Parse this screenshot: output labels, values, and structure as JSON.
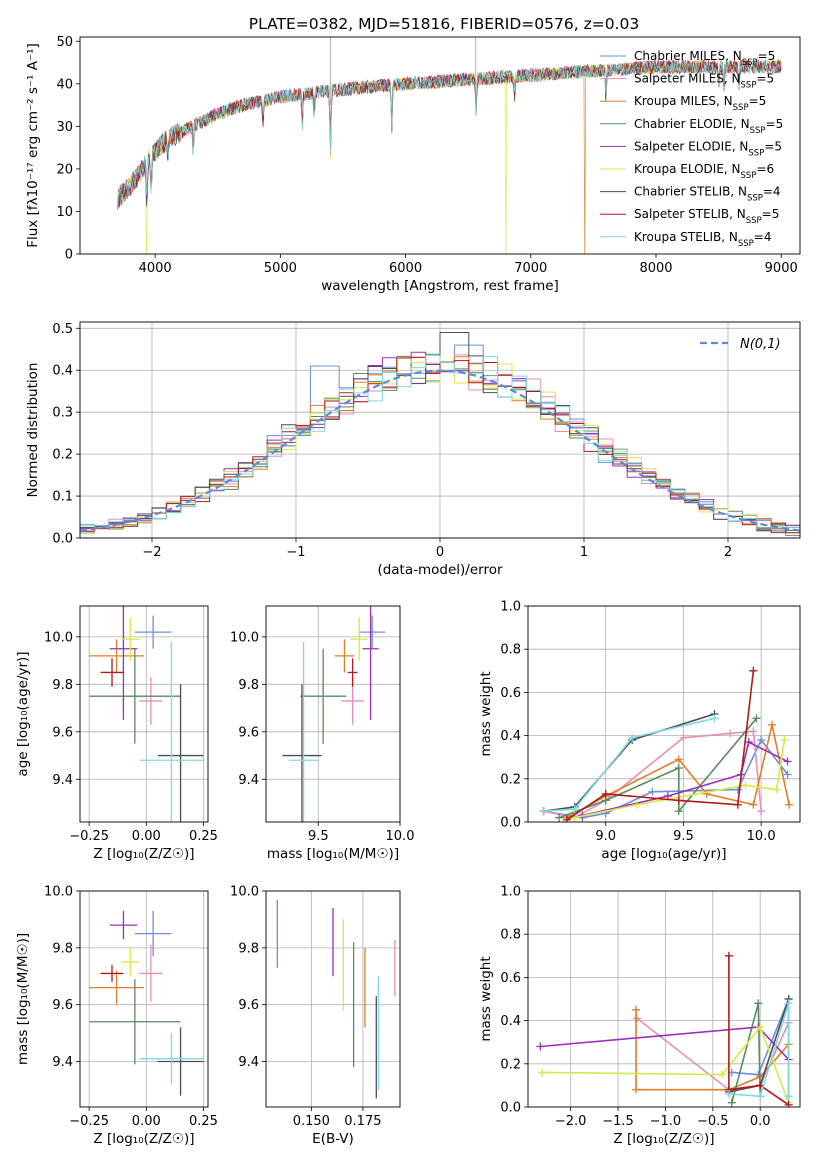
{
  "colors": {
    "chab_miles": "#6b8fe0",
    "salp_miles": "#e68fb6",
    "krou_miles": "#e07d2a",
    "chab_elodie": "#5a8a60",
    "salp_elodie": "#9b30b4",
    "krou_elodie": "#d6e84a",
    "chab_stelib": "#4e4e4e",
    "salp_stelib": "#b01a1a",
    "krou_stelib": "#7fd9e0",
    "gaussian": "#5b8ad8",
    "grid": "#b0b0b0"
  },
  "chart_data": [
    {
      "id": "spectrum",
      "type": "line",
      "title": "PLATE=0382, MJD=51816, FIBERID=0576, z=0.03",
      "xlabel": "wavelength [Angstrom, rest frame]",
      "ylabel": "Flux [fλ10⁻¹⁷ erg cm⁻² s⁻¹ A⁻¹]",
      "xlim": [
        3400,
        9150
      ],
      "ylim": [
        0,
        51
      ],
      "xticks": [
        4000,
        5000,
        6000,
        7000,
        8000,
        9000
      ],
      "yticks": [
        0,
        10,
        20,
        30,
        40,
        50
      ],
      "grid": false,
      "legend_position": "top-right",
      "continuum": [
        [
          3700,
          13
        ],
        [
          3800,
          16
        ],
        [
          3900,
          20
        ],
        [
          4000,
          24
        ],
        [
          4100,
          27
        ],
        [
          4300,
          30
        ],
        [
          4500,
          33
        ],
        [
          4700,
          35
        ],
        [
          5000,
          37
        ],
        [
          5300,
          38
        ],
        [
          5600,
          39
        ],
        [
          6000,
          40
        ],
        [
          6500,
          41
        ],
        [
          7000,
          42
        ],
        [
          7500,
          43
        ],
        [
          8000,
          44
        ],
        [
          8500,
          44
        ],
        [
          9000,
          44
        ]
      ],
      "absorption_lines": [
        [
          3934,
          -10
        ],
        [
          3968,
          -8
        ],
        [
          4102,
          -4
        ],
        [
          4304,
          -6
        ],
        [
          4861,
          -5
        ],
        [
          5175,
          -8
        ],
        [
          5270,
          -5
        ],
        [
          5400,
          -15
        ],
        [
          5890,
          -10
        ],
        [
          6563,
          -8
        ],
        [
          6870,
          -5
        ],
        [
          7600,
          -6
        ],
        [
          8500,
          -4
        ],
        [
          8542,
          -5
        ],
        [
          8662,
          -4
        ]
      ],
      "dropouts": [
        [
          3930,
          "krou_elodie"
        ],
        [
          6800,
          "krou_elodie"
        ],
        [
          7430,
          "krou_miles"
        ]
      ],
      "series": [
        {
          "key": "chab_miles",
          "name": "Chabrier MILES, N",
          "nssp": "5"
        },
        {
          "key": "salp_miles",
          "name": "Salpeter MILES, N",
          "nssp": "5"
        },
        {
          "key": "krou_miles",
          "name": "Kroupa MILES, N",
          "nssp": "5"
        },
        {
          "key": "chab_elodie",
          "name": "Chabrier ELODIE, N",
          "nssp": "5"
        },
        {
          "key": "salp_elodie",
          "name": "Salpeter ELODIE, N",
          "nssp": "5"
        },
        {
          "key": "krou_elodie",
          "name": "Kroupa ELODIE, N",
          "nssp": "6"
        },
        {
          "key": "chab_stelib",
          "name": "Chabrier STELIB, N",
          "nssp": "4"
        },
        {
          "key": "salp_stelib",
          "name": "Salpeter STELIB, N",
          "nssp": "5"
        },
        {
          "key": "krou_stelib",
          "name": "Kroupa STELIB, N",
          "nssp": "4"
        }
      ],
      "nssp_subscript": "SSP"
    },
    {
      "id": "residuals",
      "type": "histogram",
      "xlabel": "(data-model)/error",
      "ylabel": "Normed distribution",
      "xlim": [
        -2.5,
        2.5
      ],
      "ylim": [
        0,
        0.515
      ],
      "xticks": [
        -2,
        -1,
        0,
        1,
        2
      ],
      "xtick_labels": [
        "−2",
        "−1",
        "0",
        "1",
        "2"
      ],
      "yticks": [
        0.0,
        0.1,
        0.2,
        0.3,
        0.4,
        0.5
      ],
      "ytick_labels": [
        "0.0",
        "0.1",
        "0.2",
        "0.3",
        "0.4",
        "0.5"
      ],
      "grid": true,
      "bin_width": 0.1,
      "gaussian_label": "N(0,1)",
      "legend_position": "top-right",
      "highlights": [
        [
          0.1,
          0.49,
          "chab_stelib"
        ],
        [
          0.2,
          0.46,
          "chab_miles"
        ],
        [
          -0.8,
          0.41,
          "chab_miles"
        ],
        [
          -0.3,
          0.43,
          "salp_elodie"
        ]
      ]
    },
    {
      "id": "age_Z",
      "type": "errorbar",
      "xlabel": "Z [log₁₀(Z/Z☉)]",
      "ylabel": "age  [log₁₀(age/yr)]",
      "xlim": [
        -0.29,
        0.27
      ],
      "ylim": [
        9.22,
        10.13
      ],
      "xticks": [
        -0.25,
        0.0,
        0.25
      ],
      "xtick_labels": [
        "−0.25",
        "0.00",
        "0.25"
      ],
      "yticks": [
        9.4,
        9.6,
        9.8,
        10.0
      ],
      "ytick_labels": [
        "9.4",
        "9.6",
        "9.8",
        "10.0"
      ],
      "grid": true,
      "points": [
        {
          "k": "chab_miles",
          "x": 0.03,
          "y": 10.02,
          "xe": 0.08,
          "ye": 0.07
        },
        {
          "k": "salp_miles",
          "x": 0.02,
          "y": 9.73,
          "xe": 0.05,
          "ye": 0.1
        },
        {
          "k": "krou_miles",
          "x": -0.13,
          "y": 9.92,
          "xe": 0.12,
          "ye": 0.07
        },
        {
          "k": "chab_elodie",
          "x": -0.05,
          "y": 9.75,
          "xe": 0.2,
          "ye": 0.2
        },
        {
          "k": "salp_elodie",
          "x": -0.1,
          "y": 9.95,
          "xe": 0.06,
          "ye": 0.3
        },
        {
          "k": "krou_elodie",
          "x": -0.07,
          "y": 9.99,
          "xe": 0.04,
          "ye": 0.09
        },
        {
          "k": "chab_stelib",
          "x": 0.15,
          "y": 9.5,
          "xe": 0.1,
          "ye": 0.3
        },
        {
          "k": "salp_stelib",
          "x": -0.15,
          "y": 9.85,
          "xe": 0.05,
          "ye": 0.06
        },
        {
          "k": "krou_stelib",
          "x": 0.11,
          "y": 9.48,
          "xe": 0.14,
          "ye": 0.5
        }
      ]
    },
    {
      "id": "age_mass",
      "type": "errorbar",
      "xlabel": "mass [log₁₀(M/M☉)]",
      "ylabel": "",
      "xlim": [
        9.18,
        10.0
      ],
      "ylim": [
        9.22,
        10.13
      ],
      "xticks": [
        9.5,
        10.0
      ],
      "xtick_labels": [
        "9.5",
        "10.0"
      ],
      "yticks": [
        9.4,
        9.6,
        9.8,
        10.0
      ],
      "ytick_labels": [
        "9.4",
        "9.6",
        "9.8",
        "10.0"
      ],
      "grid": true,
      "points": [
        {
          "k": "chab_miles",
          "x": 9.83,
          "y": 10.02,
          "xe": 0.08,
          "ye": 0.07
        },
        {
          "k": "salp_miles",
          "x": 9.71,
          "y": 9.73,
          "xe": 0.07,
          "ye": 0.1
        },
        {
          "k": "krou_miles",
          "x": 9.66,
          "y": 9.92,
          "xe": 0.06,
          "ye": 0.07
        },
        {
          "k": "chab_elodie",
          "x": 9.53,
          "y": 9.75,
          "xe": 0.14,
          "ye": 0.2
        },
        {
          "k": "salp_elodie",
          "x": 9.82,
          "y": 9.95,
          "xe": 0.05,
          "ye": 0.3
        },
        {
          "k": "krou_elodie",
          "x": 9.75,
          "y": 9.99,
          "xe": 0.05,
          "ye": 0.09
        },
        {
          "k": "chab_stelib",
          "x": 9.4,
          "y": 9.5,
          "xe": 0.12,
          "ye": 0.3
        },
        {
          "k": "salp_stelib",
          "x": 9.71,
          "y": 9.85,
          "xe": 0.03,
          "ye": 0.06
        },
        {
          "k": "krou_stelib",
          "x": 9.41,
          "y": 9.48,
          "xe": 0.09,
          "ye": 0.5
        }
      ]
    },
    {
      "id": "mw_age",
      "type": "line",
      "xlabel": "age  [log₁₀(age/yr)]",
      "ylabel": "mass weight",
      "xlim": [
        8.5,
        10.25
      ],
      "ylim": [
        0,
        1
      ],
      "xticks": [
        9.0,
        9.5,
        10.0
      ],
      "xtick_labels": [
        "9.0",
        "9.5",
        "10.0"
      ],
      "yticks": [
        0.0,
        0.2,
        0.4,
        0.6,
        0.8,
        1.0
      ],
      "ytick_labels": [
        "0.0",
        "0.2",
        "0.4",
        "0.6",
        "0.8",
        "1.0"
      ],
      "grid": true,
      "series": [
        {
          "k": "chab_miles",
          "x": [
            8.6,
            8.85,
            9.0,
            9.3,
            9.85,
            10.0,
            10.17
          ],
          "y": [
            0.05,
            0.02,
            0.04,
            0.14,
            0.15,
            0.38,
            0.22
          ]
        },
        {
          "k": "salp_miles",
          "x": [
            8.6,
            8.8,
            9.0,
            9.5,
            9.8,
            9.95,
            10.0
          ],
          "y": [
            0.05,
            0.02,
            0.1,
            0.39,
            0.41,
            0.42,
            0.05
          ]
        },
        {
          "k": "krou_miles",
          "x": [
            8.75,
            9.0,
            9.47,
            9.65,
            9.95,
            10.07,
            10.18
          ],
          "y": [
            0.02,
            0.12,
            0.29,
            0.13,
            0.08,
            0.45,
            0.08
          ]
        },
        {
          "k": "chab_elodie",
          "x": [
            8.7,
            9.0,
            9.47,
            9.47,
            9.97
          ],
          "y": [
            0.02,
            0.1,
            0.25,
            0.05,
            0.48
          ]
        },
        {
          "k": "salp_elodie",
          "x": [
            8.85,
            9.4,
            9.87,
            9.92,
            10.17
          ],
          "y": [
            0.03,
            0.12,
            0.22,
            0.37,
            0.28
          ]
        },
        {
          "k": "krou_elodie",
          "x": [
            8.8,
            9.2,
            9.9,
            10.1,
            10.15
          ],
          "y": [
            0.02,
            0.08,
            0.17,
            0.15,
            0.38
          ]
        },
        {
          "k": "chab_stelib",
          "x": [
            8.6,
            8.8,
            9.17,
            9.7
          ],
          "y": [
            0.05,
            0.07,
            0.38,
            0.5
          ]
        },
        {
          "k": "salp_stelib",
          "x": [
            8.75,
            9.0,
            9.47,
            9.85,
            9.95
          ],
          "y": [
            0.01,
            0.13,
            0.1,
            0.08,
            0.7
          ]
        },
        {
          "k": "krou_stelib",
          "x": [
            8.6,
            8.8,
            9.17,
            9.7
          ],
          "y": [
            0.05,
            0.06,
            0.39,
            0.48
          ]
        }
      ]
    },
    {
      "id": "mass_Z",
      "type": "errorbar",
      "xlabel": "Z [log₁₀(Z/Z☉)]",
      "ylabel": "mass [log₁₀(M/M☉)]",
      "xlim": [
        -0.29,
        0.27
      ],
      "ylim": [
        9.24,
        10.0
      ],
      "xticks": [
        -0.25,
        0.0,
        0.25
      ],
      "xtick_labels": [
        "−0.25",
        "0.00",
        "0.25"
      ],
      "yticks": [
        9.4,
        9.6,
        9.8,
        10.0
      ],
      "ytick_labels": [
        "9.4",
        "9.6",
        "9.8",
        "10.0"
      ],
      "grid": true,
      "points": [
        {
          "k": "chab_miles",
          "x": 0.03,
          "y": 9.85,
          "xe": 0.08,
          "ye": 0.08
        },
        {
          "k": "salp_miles",
          "x": 0.02,
          "y": 9.71,
          "xe": 0.05,
          "ye": 0.1
        },
        {
          "k": "krou_miles",
          "x": -0.13,
          "y": 9.66,
          "xe": 0.12,
          "ye": 0.06
        },
        {
          "k": "chab_elodie",
          "x": -0.05,
          "y": 9.54,
          "xe": 0.2,
          "ye": 0.15
        },
        {
          "k": "salp_elodie",
          "x": -0.1,
          "y": 9.88,
          "xe": 0.06,
          "ye": 0.05
        },
        {
          "k": "krou_elodie",
          "x": -0.07,
          "y": 9.75,
          "xe": 0.04,
          "ye": 0.05
        },
        {
          "k": "chab_stelib",
          "x": 0.15,
          "y": 9.4,
          "xe": 0.1,
          "ye": 0.12
        },
        {
          "k": "salp_stelib",
          "x": -0.15,
          "y": 9.71,
          "xe": 0.05,
          "ye": 0.03
        },
        {
          "k": "krou_stelib",
          "x": 0.11,
          "y": 9.41,
          "xe": 0.14,
          "ye": 0.09
        }
      ]
    },
    {
      "id": "mass_ebv",
      "type": "errorbar",
      "xlabel": "E(B-V)",
      "ylabel": "",
      "xlim": [
        0.128,
        0.193
      ],
      "ylim": [
        9.24,
        10.0
      ],
      "xticks": [
        0.15,
        0.175
      ],
      "xtick_labels": [
        "0.150",
        "0.175"
      ],
      "yticks": [
        9.4,
        9.6,
        9.8,
        10.0
      ],
      "ytick_labels": [
        "9.4",
        "9.6",
        "9.8",
        "10.0"
      ],
      "grid": true,
      "points": [
        {
          "k": "chab_miles",
          "x": 0.1335,
          "y": 9.85,
          "xe": 0,
          "ye": 0.12
        },
        {
          "k": "salp_elodie",
          "x": 0.1605,
          "y": 9.82,
          "xe": 0,
          "ye": 0.12
        },
        {
          "k": "krou_elodie",
          "x": 0.1655,
          "y": 9.74,
          "xe": 0,
          "ye": 0.16
        },
        {
          "k": "chab_elodie",
          "x": 0.1705,
          "y": 9.6,
          "xe": 0,
          "ye": 0.22
        },
        {
          "k": "krou_miles",
          "x": 0.176,
          "y": 9.66,
          "xe": 0,
          "ye": 0.14
        },
        {
          "k": "chab_stelib",
          "x": 0.1815,
          "y": 9.45,
          "xe": 0,
          "ye": 0.18
        },
        {
          "k": "krou_stelib",
          "x": 0.1825,
          "y": 9.5,
          "xe": 0,
          "ye": 0.2
        },
        {
          "k": "salp_miles",
          "x": 0.1905,
          "y": 9.73,
          "xe": 0,
          "ye": 0.1
        }
      ]
    },
    {
      "id": "mw_Z",
      "type": "line",
      "xlabel": "Z [log₁₀(Z/Z☉)]",
      "ylabel": "mass weight",
      "xlim": [
        -2.45,
        0.42
      ],
      "ylim": [
        0,
        1
      ],
      "xticks": [
        -2.0,
        -1.5,
        -1.0,
        -0.5,
        0.0
      ],
      "xtick_labels": [
        "−2.0",
        "−1.5",
        "−1.0",
        "−0.5",
        "0.0"
      ],
      "yticks": [
        0.0,
        0.2,
        0.4,
        0.6,
        0.8,
        1.0
      ],
      "ytick_labels": [
        "0.0",
        "0.2",
        "0.4",
        "0.6",
        "0.8",
        "1.0"
      ],
      "grid": true,
      "series": [
        {
          "k": "chab_miles",
          "x": [
            -0.3,
            -0.02,
            0.3,
            0.3
          ],
          "y": [
            0.16,
            0.15,
            0.5,
            0.05
          ]
        },
        {
          "k": "salp_miles",
          "x": [
            -1.3,
            -0.33,
            0.0,
            0.3
          ],
          "y": [
            0.41,
            0.08,
            0.1,
            0.39
          ]
        },
        {
          "k": "krou_miles",
          "x": [
            -1.31,
            -1.31,
            -0.33,
            0.0,
            0.3
          ],
          "y": [
            0.45,
            0.08,
            0.08,
            0.14,
            0.29
          ]
        },
        {
          "k": "chab_elodie",
          "x": [
            -0.3,
            -0.02,
            0.0
          ],
          "y": [
            0.02,
            0.48,
            0.05
          ]
        },
        {
          "k": "salp_elodie",
          "x": [
            -2.32,
            -0.02,
            0.3
          ],
          "y": [
            0.28,
            0.37,
            0.22
          ]
        },
        {
          "k": "krou_elodie",
          "x": [
            -2.3,
            -0.4,
            0.0,
            0.3
          ],
          "y": [
            0.16,
            0.15,
            0.37,
            0.02
          ]
        },
        {
          "k": "chab_stelib",
          "x": [
            -0.33,
            0.0,
            0.3
          ],
          "y": [
            0.07,
            0.1,
            0.5
          ]
        },
        {
          "k": "salp_stelib",
          "x": [
            -0.33,
            -0.33,
            0.0,
            0.3
          ],
          "y": [
            0.7,
            0.08,
            0.1,
            0.01
          ]
        },
        {
          "k": "krou_stelib",
          "x": [
            -0.33,
            0.0,
            0.3,
            0.3
          ],
          "y": [
            0.06,
            0.05,
            0.48,
            0.05
          ]
        }
      ]
    }
  ]
}
